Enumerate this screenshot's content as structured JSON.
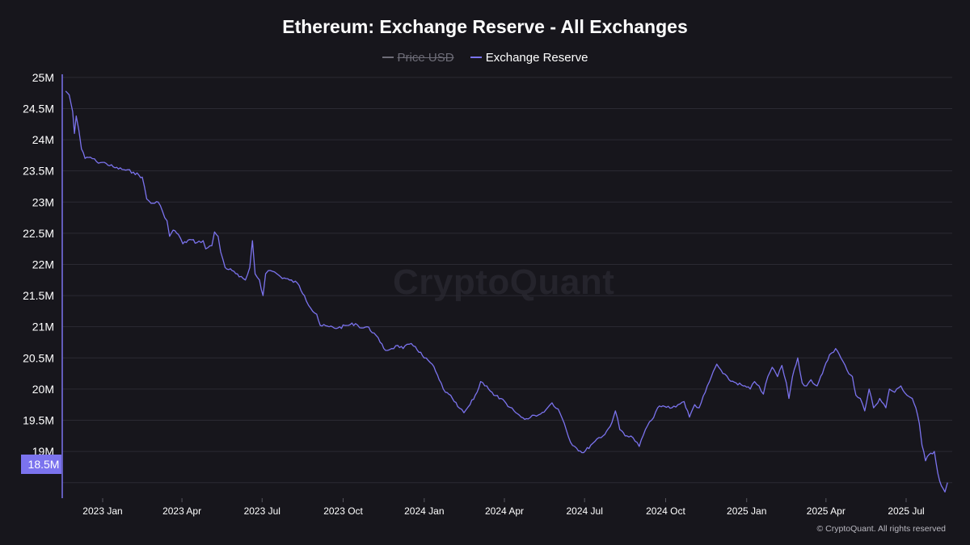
{
  "title": "Ethereum: Exchange Reserve - All Exchanges",
  "watermark": "CryptoQuant",
  "copyright": "© CryptoQuant. All rights reserved",
  "legend": [
    {
      "label": "Price USD",
      "color": "#6e6d78",
      "enabled": false
    },
    {
      "label": "Exchange Reserve",
      "color": "#7b73ee",
      "enabled": true
    }
  ],
  "current_value_badge": "18.5M",
  "colors": {
    "background": "#17161c",
    "line": "#7b73ee",
    "grid": "#2b2a33",
    "badge": "#7b73ee"
  },
  "chart_data": {
    "type": "line",
    "title": "Ethereum: Exchange Reserve - All Exchanges",
    "xlabel": "",
    "ylabel": "",
    "x_ticks": [
      "2023 Jan",
      "2023 Apr",
      "2023 Jul",
      "2023 Oct",
      "2024 Jan",
      "2024 Apr",
      "2024 Jul",
      "2024 Oct",
      "2025 Jan",
      "2025 Apr",
      "2025 Jul"
    ],
    "y_ticks": [
      "25M",
      "24.5M",
      "24M",
      "23.5M",
      "23M",
      "22.5M",
      "22M",
      "21.5M",
      "21M",
      "20.5M",
      "20M",
      "19.5M",
      "19M",
      "18.5M"
    ],
    "ylim": [
      18.25,
      25.05
    ],
    "y_unit": "M",
    "grid": true,
    "legend_position": "top-center",
    "series": [
      {
        "name": "Exchange Reserve",
        "color": "#7b73ee",
        "points": [
          [
            "2022-11-20",
            24.78
          ],
          [
            "2022-11-24",
            24.72
          ],
          [
            "2022-11-28",
            24.45
          ],
          [
            "2022-11-30",
            24.1
          ],
          [
            "2022-12-02",
            24.38
          ],
          [
            "2022-12-05",
            24.15
          ],
          [
            "2022-12-08",
            23.85
          ],
          [
            "2022-12-12",
            23.7
          ],
          [
            "2022-12-18",
            23.72
          ],
          [
            "2022-12-25",
            23.65
          ],
          [
            "2023-01-05",
            23.62
          ],
          [
            "2023-01-15",
            23.55
          ],
          [
            "2023-01-25",
            23.52
          ],
          [
            "2023-02-05",
            23.48
          ],
          [
            "2023-02-15",
            23.4
          ],
          [
            "2023-02-20",
            23.05
          ],
          [
            "2023-02-25",
            22.98
          ],
          [
            "2023-03-05",
            23.0
          ],
          [
            "2023-03-10",
            22.85
          ],
          [
            "2023-03-15",
            22.7
          ],
          [
            "2023-03-18",
            22.45
          ],
          [
            "2023-03-22",
            22.55
          ],
          [
            "2023-03-28",
            22.48
          ],
          [
            "2023-04-02",
            22.33
          ],
          [
            "2023-04-10",
            22.4
          ],
          [
            "2023-04-18",
            22.35
          ],
          [
            "2023-04-25",
            22.38
          ],
          [
            "2023-04-28",
            22.25
          ],
          [
            "2023-05-05",
            22.3
          ],
          [
            "2023-05-08",
            22.52
          ],
          [
            "2023-05-12",
            22.45
          ],
          [
            "2023-05-15",
            22.2
          ],
          [
            "2023-05-20",
            21.95
          ],
          [
            "2023-05-28",
            21.9
          ],
          [
            "2023-06-05",
            21.8
          ],
          [
            "2023-06-12",
            21.75
          ],
          [
            "2023-06-17",
            21.95
          ],
          [
            "2023-06-20",
            22.38
          ],
          [
            "2023-06-23",
            21.85
          ],
          [
            "2023-06-28",
            21.75
          ],
          [
            "2023-07-02",
            21.5
          ],
          [
            "2023-07-05",
            21.85
          ],
          [
            "2023-07-08",
            21.9
          ],
          [
            "2023-07-15",
            21.88
          ],
          [
            "2023-07-22",
            21.8
          ],
          [
            "2023-08-01",
            21.75
          ],
          [
            "2023-08-10",
            21.7
          ],
          [
            "2023-08-18",
            21.5
          ],
          [
            "2023-08-25",
            21.3
          ],
          [
            "2023-09-01",
            21.2
          ],
          [
            "2023-09-05",
            21.02
          ],
          [
            "2023-09-15",
            21.0
          ],
          [
            "2023-09-25",
            20.98
          ],
          [
            "2023-10-05",
            21.02
          ],
          [
            "2023-10-15",
            21.05
          ],
          [
            "2023-10-22",
            20.98
          ],
          [
            "2023-10-28",
            21.0
          ],
          [
            "2023-11-05",
            20.9
          ],
          [
            "2023-11-12",
            20.75
          ],
          [
            "2023-11-18",
            20.62
          ],
          [
            "2023-11-25",
            20.65
          ],
          [
            "2023-12-02",
            20.7
          ],
          [
            "2023-12-08",
            20.65
          ],
          [
            "2023-12-15",
            20.72
          ],
          [
            "2023-12-22",
            20.68
          ],
          [
            "2024-01-01",
            20.5
          ],
          [
            "2024-01-10",
            20.4
          ],
          [
            "2024-01-18",
            20.15
          ],
          [
            "2024-01-25",
            19.95
          ],
          [
            "2024-02-02",
            19.85
          ],
          [
            "2024-02-08",
            19.72
          ],
          [
            "2024-02-15",
            19.62
          ],
          [
            "2024-02-22",
            19.75
          ],
          [
            "2024-03-01",
            19.95
          ],
          [
            "2024-03-05",
            20.12
          ],
          [
            "2024-03-12",
            20.05
          ],
          [
            "2024-03-20",
            19.9
          ],
          [
            "2024-03-28",
            19.85
          ],
          [
            "2024-04-05",
            19.72
          ],
          [
            "2024-04-12",
            19.65
          ],
          [
            "2024-04-20",
            19.55
          ],
          [
            "2024-04-28",
            19.52
          ],
          [
            "2024-05-05",
            19.58
          ],
          [
            "2024-05-12",
            19.6
          ],
          [
            "2024-05-20",
            19.7
          ],
          [
            "2024-05-25",
            19.78
          ],
          [
            "2024-06-01",
            19.68
          ],
          [
            "2024-06-08",
            19.45
          ],
          [
            "2024-06-15",
            19.15
          ],
          [
            "2024-06-22",
            19.05
          ],
          [
            "2024-06-30",
            18.98
          ],
          [
            "2024-07-08",
            19.1
          ],
          [
            "2024-07-15",
            19.2
          ],
          [
            "2024-07-22",
            19.25
          ],
          [
            "2024-07-30",
            19.4
          ],
          [
            "2024-08-05",
            19.65
          ],
          [
            "2024-08-10",
            19.35
          ],
          [
            "2024-08-18",
            19.25
          ],
          [
            "2024-08-25",
            19.22
          ],
          [
            "2024-09-01",
            19.08
          ],
          [
            "2024-09-08",
            19.35
          ],
          [
            "2024-09-15",
            19.5
          ],
          [
            "2024-09-22",
            19.7
          ],
          [
            "2024-09-30",
            19.72
          ],
          [
            "2024-10-08",
            19.7
          ],
          [
            "2024-10-15",
            19.75
          ],
          [
            "2024-10-22",
            19.8
          ],
          [
            "2024-10-28",
            19.55
          ],
          [
            "2024-11-03",
            19.75
          ],
          [
            "2024-11-08",
            19.7
          ],
          [
            "2024-11-15",
            19.95
          ],
          [
            "2024-11-22",
            20.2
          ],
          [
            "2024-11-28",
            20.4
          ],
          [
            "2024-12-05",
            20.25
          ],
          [
            "2024-12-12",
            20.15
          ],
          [
            "2024-12-20",
            20.1
          ],
          [
            "2024-12-28",
            20.05
          ],
          [
            "2025-01-05",
            20.0
          ],
          [
            "2025-01-10",
            20.12
          ],
          [
            "2025-01-15",
            20.05
          ],
          [
            "2025-01-20",
            19.92
          ],
          [
            "2025-01-25",
            20.2
          ],
          [
            "2025-01-30",
            20.35
          ],
          [
            "2025-02-05",
            20.2
          ],
          [
            "2025-02-10",
            20.38
          ],
          [
            "2025-02-15",
            20.1
          ],
          [
            "2025-02-18",
            19.85
          ],
          [
            "2025-02-22",
            20.2
          ],
          [
            "2025-02-28",
            20.5
          ],
          [
            "2025-03-05",
            20.1
          ],
          [
            "2025-03-10",
            20.05
          ],
          [
            "2025-03-15",
            20.15
          ],
          [
            "2025-03-22",
            20.05
          ],
          [
            "2025-03-28",
            20.25
          ],
          [
            "2025-04-05",
            20.55
          ],
          [
            "2025-04-12",
            20.65
          ],
          [
            "2025-04-18",
            20.5
          ],
          [
            "2025-04-25",
            20.3
          ],
          [
            "2025-05-01",
            20.2
          ],
          [
            "2025-05-05",
            19.9
          ],
          [
            "2025-05-10",
            19.85
          ],
          [
            "2025-05-15",
            19.65
          ],
          [
            "2025-05-20",
            20.0
          ],
          [
            "2025-05-25",
            19.7
          ],
          [
            "2025-06-01",
            19.85
          ],
          [
            "2025-06-08",
            19.7
          ],
          [
            "2025-06-12",
            20.0
          ],
          [
            "2025-06-18",
            19.95
          ],
          [
            "2025-06-25",
            20.05
          ],
          [
            "2025-07-02",
            19.9
          ],
          [
            "2025-07-08",
            19.85
          ],
          [
            "2025-07-12",
            19.7
          ],
          [
            "2025-07-16",
            19.45
          ],
          [
            "2025-07-19",
            19.1
          ],
          [
            "2025-07-23",
            18.85
          ],
          [
            "2025-07-27",
            18.95
          ],
          [
            "2025-08-02",
            19.0
          ],
          [
            "2025-08-06",
            18.65
          ],
          [
            "2025-08-10",
            18.45
          ],
          [
            "2025-08-14",
            18.35
          ],
          [
            "2025-08-17",
            18.5
          ]
        ]
      }
    ]
  }
}
